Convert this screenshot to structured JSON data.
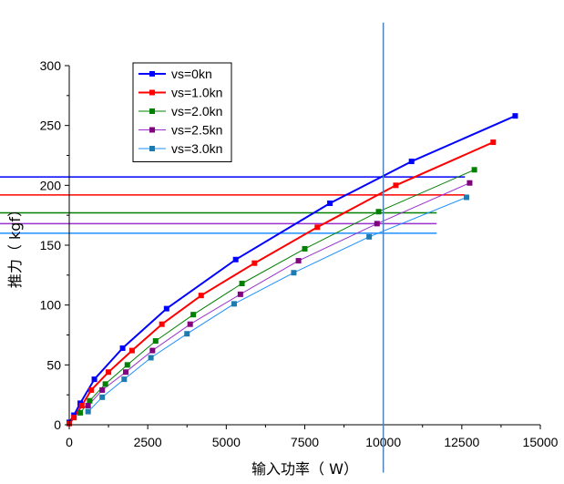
{
  "chart_data": {
    "type": "line",
    "xlabel": "输入功率（ W）",
    "ylabel": "推力（ kgf）",
    "xlim": [
      0,
      15000
    ],
    "ylim": [
      0,
      300
    ],
    "x_ticks": [
      "0",
      "2500",
      "5000",
      "7500",
      "10000",
      "12500",
      "15000"
    ],
    "y_ticks": [
      "0",
      "50",
      "100",
      "150",
      "200",
      "250",
      "300"
    ],
    "grid": false,
    "legend_position": "top-left",
    "series": [
      {
        "name": "vs=0kn",
        "color": "#0000ff",
        "marker_color": "#0000ff",
        "line_width": 2,
        "points": [
          [
            0,
            2
          ],
          [
            150,
            8
          ],
          [
            350,
            18
          ],
          [
            800,
            38
          ],
          [
            1700,
            64
          ],
          [
            3100,
            97
          ],
          [
            5300,
            138
          ],
          [
            8300,
            185
          ],
          [
            10900,
            220
          ],
          [
            14200,
            258
          ]
        ],
        "horizontal_line": {
          "y": 207,
          "x_start": -3000,
          "x_end": 12600
        }
      },
      {
        "name": "vs=1.0kn",
        "color": "#ff0000",
        "marker_color": "#ff0000",
        "line_width": 2,
        "points": [
          [
            0,
            1
          ],
          [
            150,
            6
          ],
          [
            400,
            16
          ],
          [
            700,
            29
          ],
          [
            1250,
            44
          ],
          [
            2000,
            62
          ],
          [
            2950,
            84
          ],
          [
            4200,
            108
          ],
          [
            5900,
            135
          ],
          [
            7900,
            165
          ],
          [
            10400,
            200
          ],
          [
            13500,
            236
          ]
        ],
        "horizontal_line": {
          "y": 192,
          "x_start": -3000,
          "x_end": 12600
        }
      },
      {
        "name": "vs=2.0kn",
        "color": "#008000",
        "marker_color": "#008000",
        "line_width": 1,
        "points": [
          [
            350,
            10
          ],
          [
            650,
            20
          ],
          [
            1150,
            34
          ],
          [
            1850,
            50
          ],
          [
            2750,
            70
          ],
          [
            3950,
            92
          ],
          [
            5500,
            118
          ],
          [
            7500,
            147
          ],
          [
            9850,
            178
          ],
          [
            12900,
            213
          ]
        ],
        "horizontal_line": {
          "y": 177,
          "x_start": -3000,
          "x_end": 11700
        }
      },
      {
        "name": "vs=2.5kn",
        "color": "#9932cc",
        "marker_color": "#800080",
        "line_width": 1,
        "points": [
          [
            600,
            16
          ],
          [
            1050,
            29
          ],
          [
            1800,
            44
          ],
          [
            2650,
            62
          ],
          [
            3850,
            84
          ],
          [
            5450,
            109
          ],
          [
            7300,
            137
          ],
          [
            9800,
            168
          ],
          [
            12750,
            202
          ]
        ],
        "horizontal_line": {
          "y": 168,
          "x_start": -3000,
          "x_end": 11700
        }
      },
      {
        "name": "vs=3.0kn",
        "color": "#1e90ff",
        "marker_color": "#1e7bb0",
        "line_width": 1,
        "points": [
          [
            600,
            11
          ],
          [
            1050,
            23
          ],
          [
            1750,
            38
          ],
          [
            2600,
            56
          ],
          [
            3750,
            76
          ],
          [
            5250,
            101
          ],
          [
            7150,
            127
          ],
          [
            9550,
            157
          ],
          [
            12650,
            190
          ]
        ],
        "horizontal_line": {
          "y": 160,
          "x_start": -3000,
          "x_end": 11700
        }
      }
    ],
    "vertical_line": {
      "x": 10000,
      "y_start": -40,
      "y_end": 336,
      "color": "#4f81bd"
    }
  }
}
